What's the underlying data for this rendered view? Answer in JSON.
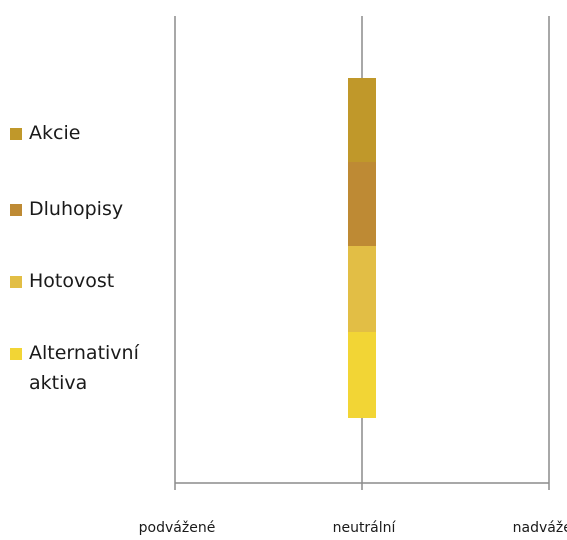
{
  "chart_data": {
    "type": "bar",
    "orientation": "horizontal-positioning",
    "title": "",
    "xlabel": "",
    "ylabel": "",
    "x_categories": [
      "podvážené",
      "neutrální",
      "nadvážené"
    ],
    "x_positions": [
      0,
      1,
      2
    ],
    "grid": true,
    "legend_position": "left",
    "series": [
      {
        "name": "Akcie",
        "position": 1,
        "color": "#C0982A"
      },
      {
        "name": "Dluhopisy",
        "position": 1,
        "color": "#BE8A34"
      },
      {
        "name": "Hotovost",
        "position": 1,
        "color": "#E2BE45"
      },
      {
        "name": "Alternativní\naktiva",
        "position": 1,
        "color": "#F2D535"
      }
    ]
  }
}
